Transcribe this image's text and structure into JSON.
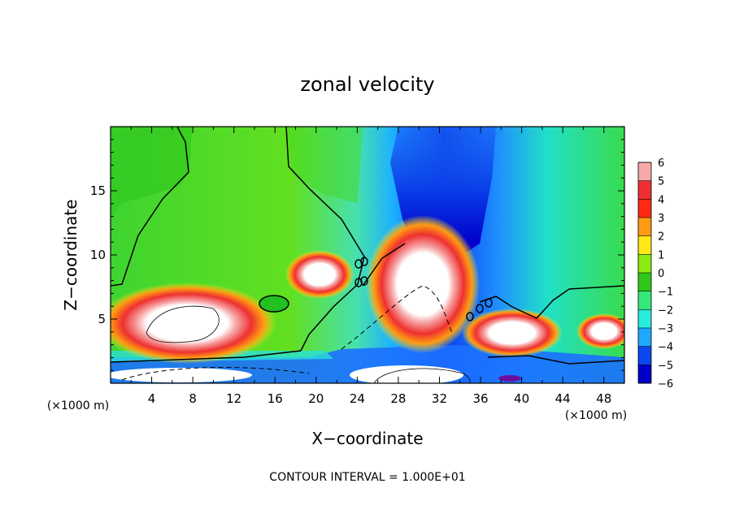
{
  "chart_data": {
    "type": "heatmap",
    "title": "zonal velocity",
    "xlabel": "X−coordinate",
    "ylabel": "Z−coordinate",
    "x_unit_left": "(×1000 m)",
    "x_unit_right": "(×1000 m)",
    "footer": "CONTOUR INTERVAL = 1.000E+01",
    "xlim": [
      0,
      50
    ],
    "ylim": [
      0,
      20
    ],
    "x_ticks": [
      "4",
      "8",
      "12",
      "16",
      "20",
      "24",
      "28",
      "32",
      "36",
      "40",
      "44",
      "48"
    ],
    "y_ticks": [
      "5",
      "10",
      "15"
    ],
    "colorbar": {
      "range": [
        -6,
        6
      ],
      "labels": [
        "6",
        "5",
        "4",
        "3",
        "2",
        "1",
        "0",
        "−1",
        "−2",
        "−3",
        "−4",
        "−5",
        "−6"
      ],
      "colors": [
        "#f7a8a8",
        "#ee3030",
        "#ff2a14",
        "#ff9a12",
        "#ffe818",
        "#8aec12",
        "#2ec81a",
        "#36e87a",
        "#28ecdc",
        "#1ea8ff",
        "#0a48ee",
        "#0000c8",
        "#7a0a9e"
      ]
    },
    "features": [
      {
        "name": "westerly-jet-low-left",
        "x": [
          2,
          13
        ],
        "z": [
          2,
          7
        ],
        "u": 8
      },
      {
        "name": "westerly-core-mid",
        "x": [
          17,
          21
        ],
        "z": [
          6,
          10
        ],
        "u": 7
      },
      {
        "name": "westerly-core-large",
        "x": [
          27,
          34
        ],
        "z": [
          4,
          12
        ],
        "u": 9
      },
      {
        "name": "westerly-jet-low-right",
        "x": [
          36,
          42
        ],
        "z": [
          2,
          5
        ],
        "u": 7
      },
      {
        "name": "westerly-jet-far-right",
        "x": [
          45,
          50
        ],
        "z": [
          3,
          5
        ],
        "u": 6
      },
      {
        "name": "easterly-column",
        "x": [
          25,
          40
        ],
        "z": [
          10,
          20
        ],
        "u": -5
      },
      {
        "name": "easterly-surface-layer",
        "x": [
          0,
          50
        ],
        "z": [
          0,
          1.5
        ],
        "u": -4
      }
    ]
  }
}
